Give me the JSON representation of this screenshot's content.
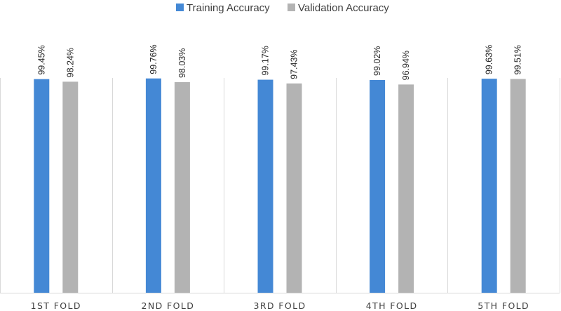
{
  "chart_data": {
    "type": "bar",
    "categories": [
      "1ST FOLD",
      "2ND FOLD",
      "3RD FOLD",
      "4TH FOLD",
      "5TH FOLD"
    ],
    "series": [
      {
        "name": "Training Accuracy",
        "color": "#4488d5",
        "values": [
          99.45,
          99.76,
          99.17,
          99.02,
          99.63
        ],
        "labels": [
          "99.45%",
          "99.76%",
          "99.17%",
          "99.02%",
          "99.63%"
        ]
      },
      {
        "name": "Validation Accuracy",
        "color": "#b3b3b3",
        "values": [
          98.24,
          98.03,
          97.43,
          96.94,
          99.51
        ],
        "labels": [
          "98.24%",
          "98.03%",
          "97.43%",
          "96.94%",
          "99.51%"
        ]
      }
    ],
    "ylim": [
      0,
      100
    ],
    "legend_position": "top-center",
    "grid": false,
    "category_separators": true
  }
}
